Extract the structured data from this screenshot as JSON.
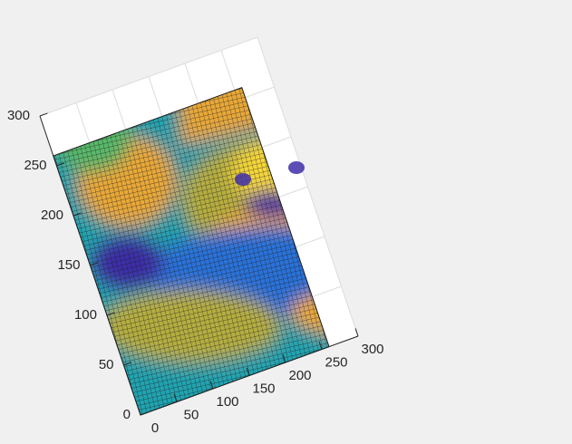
{
  "chart_data": {
    "type": "heatmap",
    "title": "",
    "xlabel": "",
    "ylabel": "",
    "x_ticks": [
      0,
      50,
      100,
      150,
      200,
      250,
      300
    ],
    "y_ticks": [
      0,
      50,
      100,
      150,
      200,
      250,
      300
    ],
    "xlim": [
      0,
      300
    ],
    "ylim": [
      0,
      300
    ],
    "grid": true,
    "colormap": "parula",
    "surface_extent": {
      "x": [
        0,
        260
      ],
      "y": [
        0,
        260
      ]
    },
    "description": "surface plot of a grayscale image rendered as a mesh grid, viewed at an oblique 3-D angle"
  },
  "colors": {
    "figure_bg": "#f0f0f0",
    "axes_bg": "#ffffff",
    "grid": "#dcdcdc",
    "axis": "#262626",
    "mesh_edge": "#1a1a1a",
    "dark_blue": "#3e2ea8",
    "blue": "#2b72d8",
    "teal": "#21a3b0",
    "green": "#58b86a",
    "olive": "#b5ad40",
    "orange": "#e8a838",
    "yellow": "#f5d63a"
  }
}
